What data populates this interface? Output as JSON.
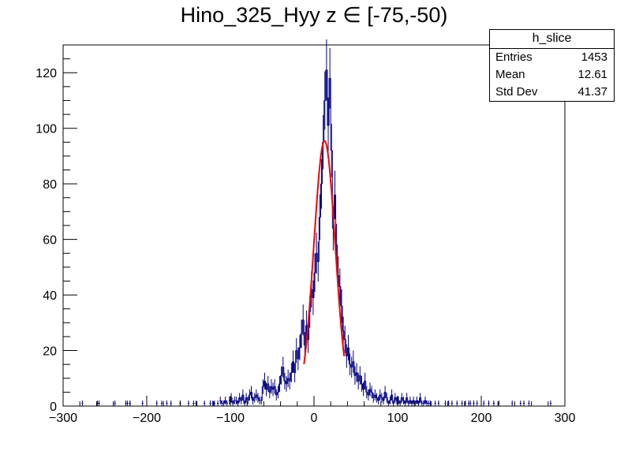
{
  "chart_data": {
    "type": "histogram",
    "title": "Hino_325_Hyy z  ∈ [-75,-50)",
    "xlim": [
      -300,
      300
    ],
    "ylim": [
      0,
      130
    ],
    "bin_width": 2,
    "xticks": [
      -300,
      -200,
      -100,
      0,
      100,
      200,
      300
    ],
    "yticks": [
      0,
      20,
      40,
      60,
      80,
      100,
      120
    ],
    "xtick_labels": [
      "−300",
      "−200",
      "−100",
      "0",
      "100",
      "200",
      "300"
    ],
    "ytick_labels": [
      "0",
      "20",
      "40",
      "60",
      "80",
      "100",
      "120"
    ],
    "series": [
      {
        "bins": [
          [
            -277,
            1
          ],
          [
            -259,
            1
          ],
          [
            -257,
            1
          ],
          [
            -238,
            1
          ],
          [
            -225,
            1
          ],
          [
            -223,
            1
          ],
          [
            -220,
            1
          ],
          [
            -205,
            1
          ],
          [
            -188,
            1
          ],
          [
            -182,
            1
          ],
          [
            -176,
            1
          ],
          [
            -171,
            1
          ],
          [
            -160,
            1
          ],
          [
            -150,
            1
          ],
          [
            -144,
            1
          ],
          [
            -141,
            1
          ],
          [
            -131,
            1
          ],
          [
            -124,
            1
          ],
          [
            -121,
            1
          ],
          [
            -119,
            1
          ],
          [
            -115,
            1
          ],
          [
            -112,
            2
          ],
          [
            -110,
            1
          ],
          [
            -108,
            1
          ],
          [
            -106,
            2
          ],
          [
            -104,
            1
          ],
          [
            -101,
            2
          ],
          [
            -99,
            3
          ],
          [
            -97,
            1
          ],
          [
            -95,
            2
          ],
          [
            -93,
            2
          ],
          [
            -91,
            1
          ],
          [
            -89,
            3
          ],
          [
            -87,
            2
          ],
          [
            -85,
            4
          ],
          [
            -83,
            1
          ],
          [
            -81,
            3
          ],
          [
            -79,
            2
          ],
          [
            -77,
            4
          ],
          [
            -75,
            5
          ],
          [
            -73,
            2
          ],
          [
            -71,
            3
          ],
          [
            -69,
            4
          ],
          [
            -67,
            3
          ],
          [
            -65,
            2
          ],
          [
            -63,
            2
          ],
          [
            -61,
            7
          ],
          [
            -59,
            9
          ],
          [
            -57,
            6
          ],
          [
            -55,
            8
          ],
          [
            -53,
            5
          ],
          [
            -51,
            7
          ],
          [
            -49,
            6
          ],
          [
            -47,
            7
          ],
          [
            -45,
            4
          ],
          [
            -43,
            5
          ],
          [
            -41,
            8
          ],
          [
            -39,
            11
          ],
          [
            -37,
            14
          ],
          [
            -35,
            9
          ],
          [
            -33,
            8
          ],
          [
            -31,
            10
          ],
          [
            -29,
            9
          ],
          [
            -27,
            12
          ],
          [
            -25,
            16
          ],
          [
            -23,
            12
          ],
          [
            -21,
            20
          ],
          [
            -19,
            17
          ],
          [
            -17,
            21
          ],
          [
            -15,
            26
          ],
          [
            -13,
            31
          ],
          [
            -11,
            22
          ],
          [
            -9,
            29
          ],
          [
            -7,
            24
          ],
          [
            -5,
            34
          ],
          [
            -3,
            42
          ],
          [
            -1,
            39
          ],
          [
            1,
            48
          ],
          [
            3,
            55
          ],
          [
            5,
            52
          ],
          [
            7,
            68
          ],
          [
            9,
            80
          ],
          [
            11,
            95
          ],
          [
            13,
            110
          ],
          [
            15,
            121
          ],
          [
            17,
            101
          ],
          [
            19,
            118
          ],
          [
            21,
            92
          ],
          [
            23,
            64
          ],
          [
            25,
            76
          ],
          [
            27,
            58
          ],
          [
            29,
            47
          ],
          [
            31,
            43
          ],
          [
            33,
            36
          ],
          [
            35,
            27
          ],
          [
            37,
            24
          ],
          [
            39,
            18
          ],
          [
            41,
            21
          ],
          [
            43,
            15
          ],
          [
            45,
            14
          ],
          [
            47,
            16
          ],
          [
            49,
            11
          ],
          [
            51,
            12
          ],
          [
            53,
            9
          ],
          [
            55,
            11
          ],
          [
            57,
            8
          ],
          [
            59,
            6
          ],
          [
            61,
            9
          ],
          [
            63,
            5
          ],
          [
            65,
            4
          ],
          [
            67,
            6
          ],
          [
            69,
            5
          ],
          [
            71,
            3
          ],
          [
            73,
            4
          ],
          [
            75,
            3
          ],
          [
            77,
            2
          ],
          [
            79,
            4
          ],
          [
            81,
            3
          ],
          [
            83,
            2
          ],
          [
            85,
            5
          ],
          [
            87,
            3
          ],
          [
            89,
            1
          ],
          [
            91,
            2
          ],
          [
            93,
            4
          ],
          [
            95,
            1
          ],
          [
            97,
            3
          ],
          [
            99,
            2
          ],
          [
            101,
            2
          ],
          [
            103,
            1
          ],
          [
            105,
            3
          ],
          [
            107,
            2
          ],
          [
            109,
            1
          ],
          [
            111,
            3
          ],
          [
            113,
            1
          ],
          [
            115,
            2
          ],
          [
            117,
            1
          ],
          [
            119,
            2
          ],
          [
            121,
            1
          ],
          [
            123,
            2
          ],
          [
            125,
            1
          ],
          [
            127,
            3
          ],
          [
            129,
            1
          ],
          [
            131,
            1
          ],
          [
            133,
            2
          ],
          [
            135,
            1
          ],
          [
            137,
            1
          ],
          [
            139,
            1
          ],
          [
            145,
            1
          ],
          [
            149,
            1
          ],
          [
            157,
            1
          ],
          [
            161,
            1
          ],
          [
            165,
            1
          ],
          [
            171,
            1
          ],
          [
            177,
            1
          ],
          [
            181,
            1
          ],
          [
            185,
            1
          ],
          [
            187,
            1
          ],
          [
            191,
            1
          ],
          [
            195,
            1
          ],
          [
            203,
            1
          ],
          [
            209,
            1
          ],
          [
            215,
            1
          ],
          [
            221,
            1
          ],
          [
            237,
            1
          ],
          [
            247,
            1
          ],
          [
            251,
            1
          ],
          [
            257,
            1
          ],
          [
            283,
            1
          ]
        ]
      },
      {
        "type": "gaussian",
        "constant": 95.5,
        "mean": 12.6,
        "sigma": 12.8,
        "range": [
          -12,
          36
        ]
      }
    ]
  },
  "stats_box": {
    "name": "h_slice",
    "rows": [
      {
        "label": "Entries",
        "value": "1453"
      },
      {
        "label": "Mean",
        "value": "12.61"
      },
      {
        "label": "Std Dev",
        "value": "41.37"
      }
    ]
  },
  "colors": {
    "histogram": "#000080",
    "fit": "#ff0000",
    "axis": "#000000"
  }
}
